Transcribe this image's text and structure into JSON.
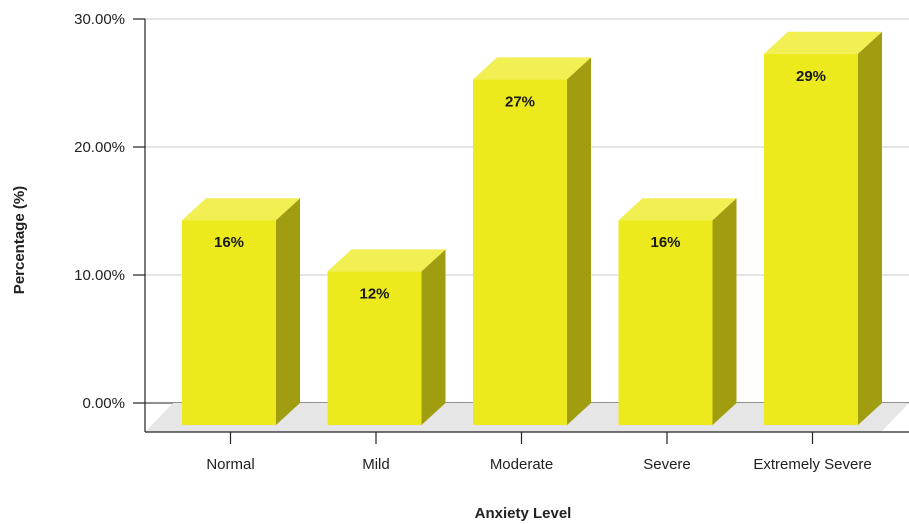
{
  "chart_data": {
    "type": "bar",
    "title": "",
    "xlabel": "Anxiety Level",
    "ylabel": "Percentage (%)",
    "categories": [
      "Normal",
      "Mild",
      "Moderate",
      "Severe",
      "Extremely Severe"
    ],
    "values": [
      16,
      12,
      27,
      16,
      29
    ],
    "data_labels": [
      "16%",
      "12%",
      "27%",
      "16%",
      "29%"
    ],
    "ylim": [
      0,
      30
    ],
    "yticks": [
      0,
      10,
      20,
      30
    ],
    "ytick_labels": [
      "0.00%",
      "10.00%",
      "20.00%",
      "30.00%"
    ],
    "grid": true,
    "legend": "none",
    "style": "3d-bar"
  },
  "colors": {
    "bar_front": "#ECEA1C",
    "bar_top": "#F2EF52",
    "bar_side": "#A09E10",
    "floor": "#E6E6E6",
    "grid": "#C8C8C8",
    "axis": "#222222"
  }
}
